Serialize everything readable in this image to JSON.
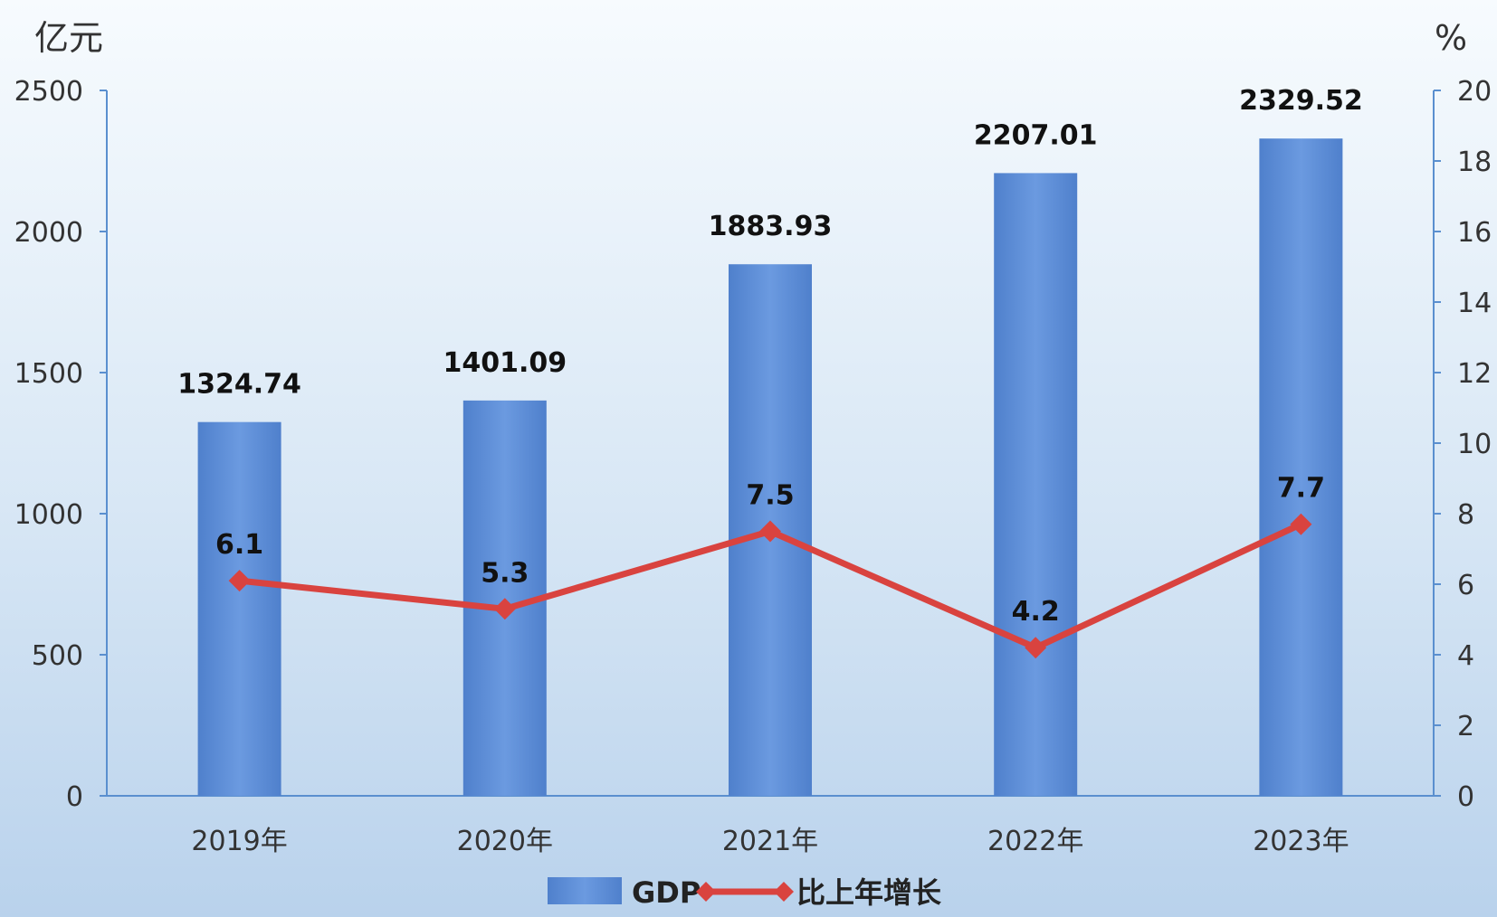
{
  "chart_data": {
    "type": "bar",
    "categories": [
      "2019年",
      "2020年",
      "2021年",
      "2022年",
      "2023年"
    ],
    "series": [
      {
        "name": "GDP",
        "type": "bar",
        "axis": "left",
        "values": [
          1324.74,
          1401.09,
          1883.93,
          2207.01,
          2329.52
        ],
        "labels": [
          "1324.74",
          "1401.09",
          "1883.93",
          "2207.01",
          "2329.52"
        ],
        "color": "#5f8fd6"
      },
      {
        "name": "比上年增长",
        "type": "line",
        "axis": "right",
        "values": [
          6.1,
          5.3,
          7.5,
          4.2,
          7.7
        ],
        "labels": [
          "6.1",
          "5.3",
          "7.5",
          "4.2",
          "7.7"
        ],
        "color": "#d9433f"
      }
    ],
    "left_axis": {
      "unit": "亿元",
      "ylim": [
        0,
        2500
      ],
      "ticks": [
        "0",
        "500",
        "1000",
        "1500",
        "2000",
        "2500"
      ]
    },
    "right_axis": {
      "unit": "%",
      "ylim": [
        0,
        20
      ],
      "ticks": [
        "0",
        "2",
        "4",
        "6",
        "8",
        "10",
        "12",
        "14",
        "16",
        "18",
        "20"
      ]
    },
    "legend_position": "bottom",
    "grid": false
  }
}
